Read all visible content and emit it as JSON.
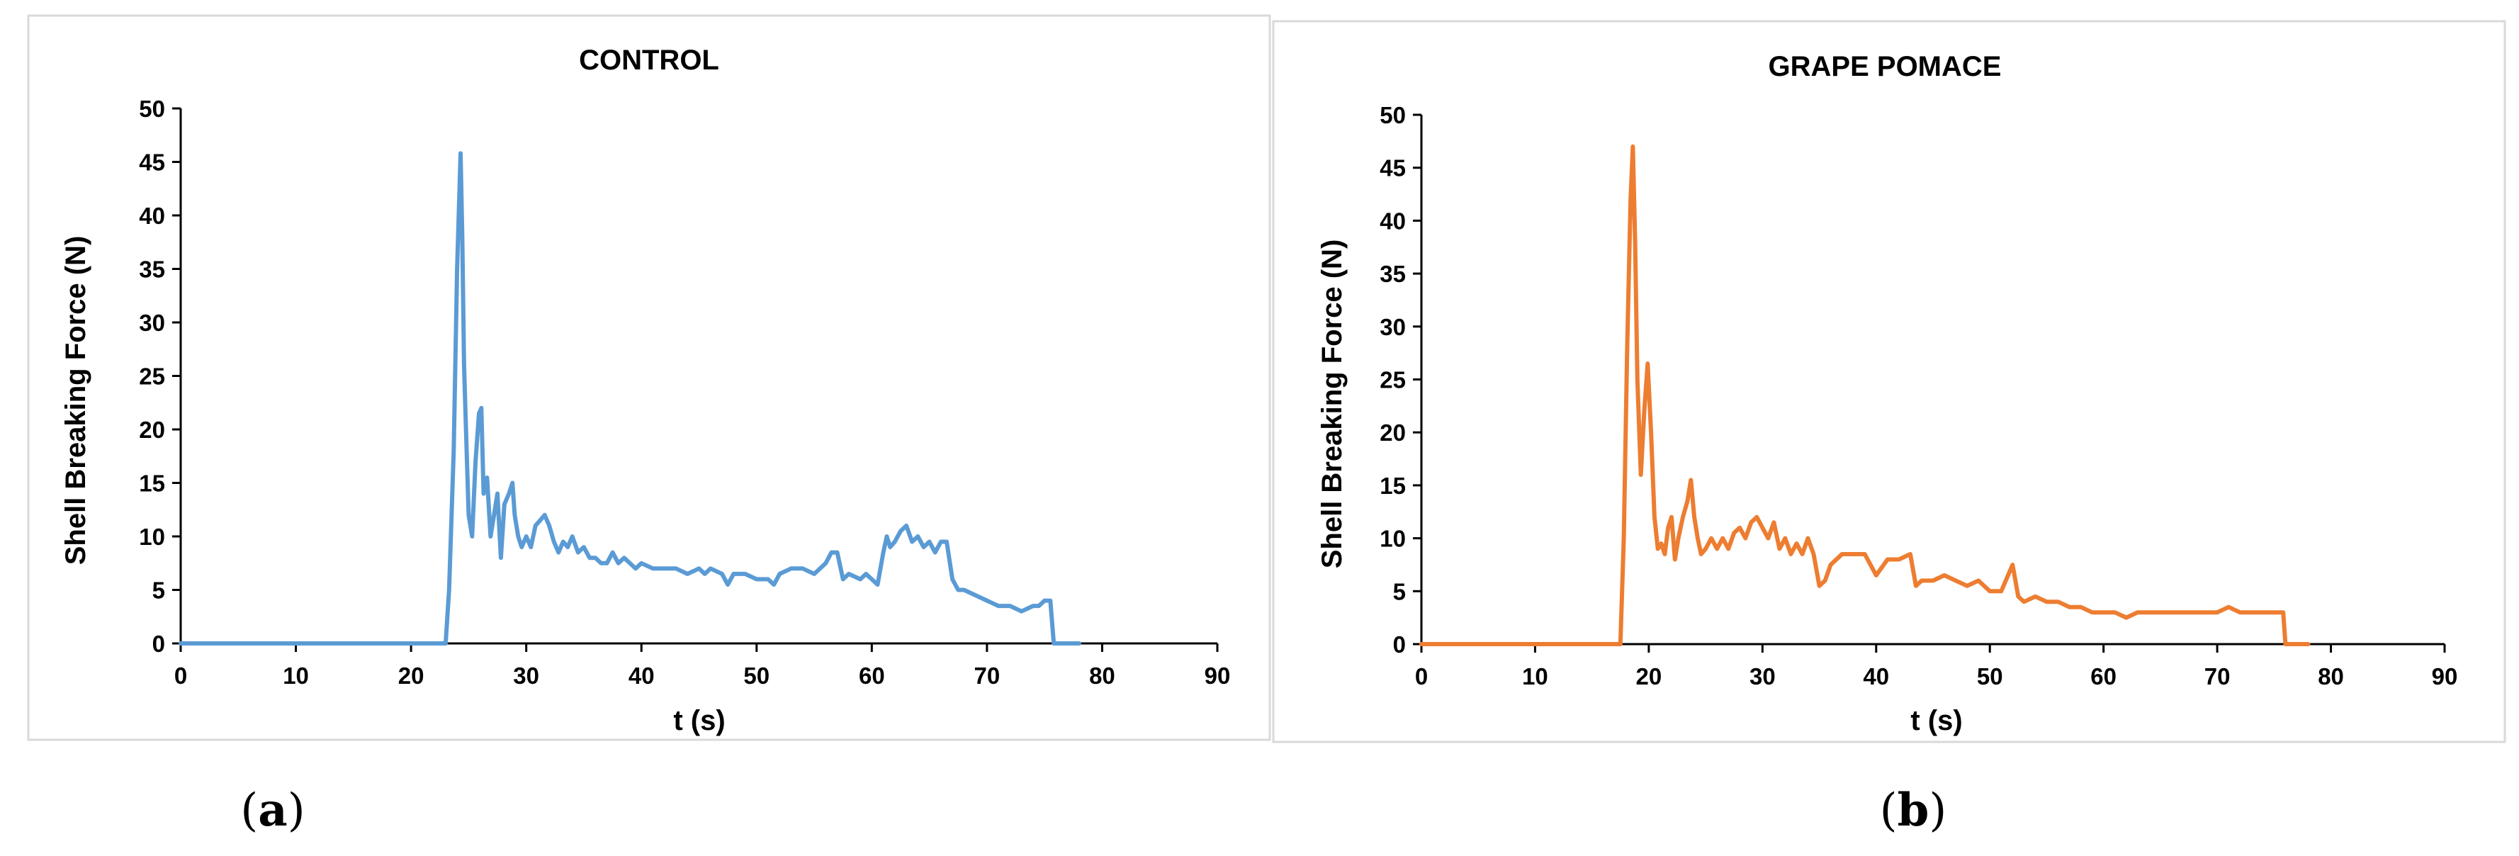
{
  "chart_data": [
    {
      "type": "line",
      "title": "CONTROL",
      "xlabel": "t (s)",
      "ylabel": "Shell Breaking Force  (N)",
      "xlim": [
        0,
        90
      ],
      "ylim": [
        0,
        50
      ],
      "x_ticks": [
        "0",
        "10",
        "20",
        "30",
        "40",
        "50",
        "60",
        "70",
        "80",
        "90"
      ],
      "y_ticks": [
        "0",
        "5",
        "10",
        "15",
        "20",
        "25",
        "30",
        "35",
        "40",
        "45",
        "50"
      ],
      "grid": false,
      "legend": "none",
      "panel_label": "a",
      "color": "#5b9bd5",
      "series": [
        {
          "x": [
            0,
            23.0,
            23.3,
            23.7,
            24.0,
            24.3,
            24.45,
            24.6,
            24.8,
            25.0,
            25.3,
            25.6,
            25.9,
            26.1,
            26.3,
            26.6,
            26.9,
            27.2,
            27.5,
            27.8,
            28.1,
            28.5,
            28.8,
            29.0,
            29.3,
            29.6,
            30.0,
            30.4,
            30.8,
            31.2,
            31.6,
            32.0,
            32.4,
            32.8,
            33.2,
            33.6,
            34.0,
            34.5,
            35.0,
            35.5,
            36.0,
            36.5,
            37.0,
            37.5,
            38.0,
            38.5,
            39.0,
            39.5,
            40.0,
            41.0,
            42.0,
            43.0,
            44.0,
            45.0,
            45.5,
            46.0,
            47.0,
            47.5,
            48.0,
            49.0,
            50.0,
            51.0,
            51.5,
            52.0,
            53.0,
            54.0,
            55.0,
            56.0,
            56.5,
            57.0,
            57.5,
            58.0,
            59.0,
            59.5,
            60.0,
            60.5,
            61.0,
            61.3,
            61.6,
            62.0,
            62.5,
            63.0,
            63.5,
            64.0,
            64.5,
            65.0,
            65.5,
            66.0,
            66.5,
            67.0,
            67.5,
            68.0,
            69.0,
            70.0,
            71.0,
            72.0,
            73.0,
            74.0,
            74.5,
            75.0,
            75.5,
            75.8,
            76.0,
            77.0,
            78.0
          ],
          "y": [
            0,
            0,
            5,
            18,
            35,
            45.8,
            38,
            26,
            19,
            12,
            10,
            17,
            21.5,
            22,
            14,
            15.5,
            10,
            12,
            14,
            8,
            13,
            14,
            15,
            12,
            10,
            9,
            10,
            9,
            11,
            11.5,
            12,
            11,
            9.5,
            8.5,
            9.5,
            9,
            10,
            8.5,
            9,
            8,
            8,
            7.5,
            7.5,
            8.5,
            7.5,
            8,
            7.5,
            7,
            7.5,
            7,
            7,
            7,
            6.5,
            7,
            6.5,
            7,
            6.5,
            5.5,
            6.5,
            6.5,
            6,
            6,
            5.5,
            6.5,
            7,
            7,
            6.5,
            7.5,
            8.5,
            8.5,
            6,
            6.5,
            6,
            6.5,
            6,
            5.5,
            8.5,
            10,
            9,
            9.5,
            10.5,
            11,
            9.5,
            10,
            9,
            9.5,
            8.5,
            9.5,
            9.5,
            6,
            5,
            5,
            4.5,
            4,
            3.5,
            3.5,
            3,
            3.5,
            3.5,
            4,
            4,
            0,
            0,
            0,
            0
          ]
        }
      ]
    },
    {
      "type": "line",
      "title": "GRAPE POMACE",
      "xlabel": "t (s)",
      "ylabel": "Shell Breaking Force  (N)",
      "xlim": [
        0,
        90
      ],
      "ylim": [
        0,
        50
      ],
      "x_ticks": [
        "0",
        "10",
        "20",
        "30",
        "40",
        "50",
        "60",
        "70",
        "80",
        "90"
      ],
      "y_ticks": [
        "0",
        "5",
        "10",
        "15",
        "20",
        "25",
        "30",
        "35",
        "40",
        "45",
        "50"
      ],
      "grid": false,
      "legend": "none",
      "panel_label": "b",
      "color": "#ed7d31",
      "series": [
        {
          "x": [
            0,
            17.5,
            17.8,
            18.1,
            18.4,
            18.6,
            18.8,
            19.0,
            19.3,
            19.6,
            19.9,
            20.2,
            20.5,
            20.8,
            21.1,
            21.4,
            21.7,
            22.0,
            22.3,
            22.6,
            23.0,
            23.4,
            23.7,
            24.0,
            24.3,
            24.6,
            25.0,
            25.5,
            26.0,
            26.5,
            27.0,
            27.5,
            28.0,
            28.5,
            29.0,
            29.5,
            30.0,
            30.5,
            31.0,
            31.5,
            32.0,
            32.5,
            33.0,
            33.5,
            34.0,
            34.5,
            35.0,
            35.5,
            36.0,
            37.0,
            38.0,
            39.0,
            40.0,
            41.0,
            42.0,
            43.0,
            43.5,
            44.0,
            45.0,
            46.0,
            47.0,
            48.0,
            49.0,
            50.0,
            51.0,
            52.0,
            52.5,
            53.0,
            54.0,
            55.0,
            56.0,
            57.0,
            58.0,
            59.0,
            60.0,
            61.0,
            62.0,
            63.0,
            64.0,
            65.0,
            66.0,
            67.0,
            68.0,
            69.0,
            70.0,
            71.0,
            72.0,
            73.0,
            74.0,
            75.0,
            75.8,
            76.0,
            77.0,
            78.0
          ],
          "y": [
            0,
            0,
            10,
            28,
            42,
            47,
            38,
            25,
            16,
            22,
            26.5,
            20,
            12,
            9,
            9.5,
            8.5,
            11,
            12,
            8,
            10,
            12,
            13.5,
            15.5,
            12,
            10,
            8.5,
            9,
            10,
            9,
            10,
            9,
            10.5,
            11,
            10,
            11.5,
            12,
            11,
            10,
            11.5,
            9,
            10,
            8.5,
            9.5,
            8.5,
            10,
            8.5,
            5.5,
            6,
            7.5,
            8.5,
            8.5,
            8.5,
            6.5,
            8,
            8,
            8.5,
            5.5,
            6,
            6,
            6.5,
            6,
            5.5,
            6,
            5,
            5,
            7.5,
            4.5,
            4,
            4.5,
            4,
            4,
            3.5,
            3.5,
            3,
            3,
            3,
            2.5,
            3,
            3,
            3,
            3,
            3,
            3,
            3,
            3,
            3.5,
            3,
            3,
            3,
            3,
            3,
            0,
            0,
            0
          ]
        }
      ]
    }
  ]
}
